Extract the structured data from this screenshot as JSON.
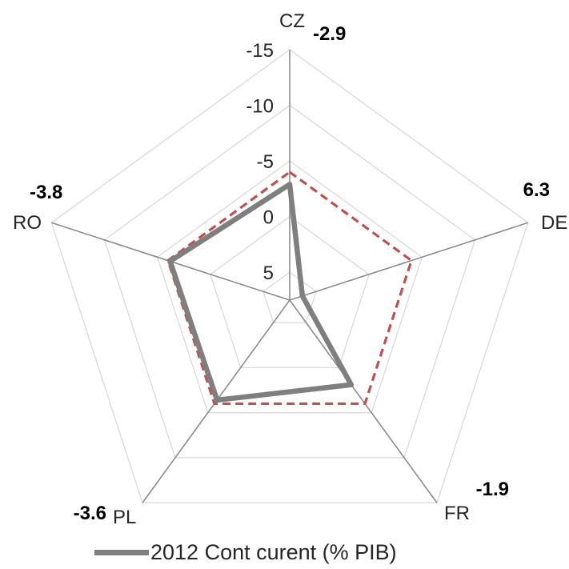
{
  "chart_data": {
    "type": "radar",
    "categories": [
      "CZ",
      "DE",
      "FR",
      "PL",
      "RO"
    ],
    "axis": {
      "min": 7.5,
      "max": -15,
      "ticks": [
        5,
        0,
        -5,
        -10,
        -15
      ],
      "tick_labels": [
        "5",
        "0",
        "-5",
        "-10",
        "-15"
      ],
      "reversed": true
    },
    "series": [
      {
        "name": "2012 Cont curent (% PIB)",
        "values": [
          -2.9,
          6.3,
          -1.9,
          -3.6,
          -3.8
        ],
        "color": "#7f7f7f",
        "style": "solid"
      },
      {
        "values": [
          -4.0,
          -4.0,
          -4.0,
          -4.0,
          -4.0
        ],
        "color": "#c0504d",
        "style": "dashed"
      }
    ],
    "value_labels": [
      "-2.9",
      "6.3",
      "-1.9",
      "-3.6",
      "-3.8"
    ],
    "legend": {
      "position": "bottom",
      "label": "2012 Cont curent (% PIB)"
    },
    "grid": true
  }
}
